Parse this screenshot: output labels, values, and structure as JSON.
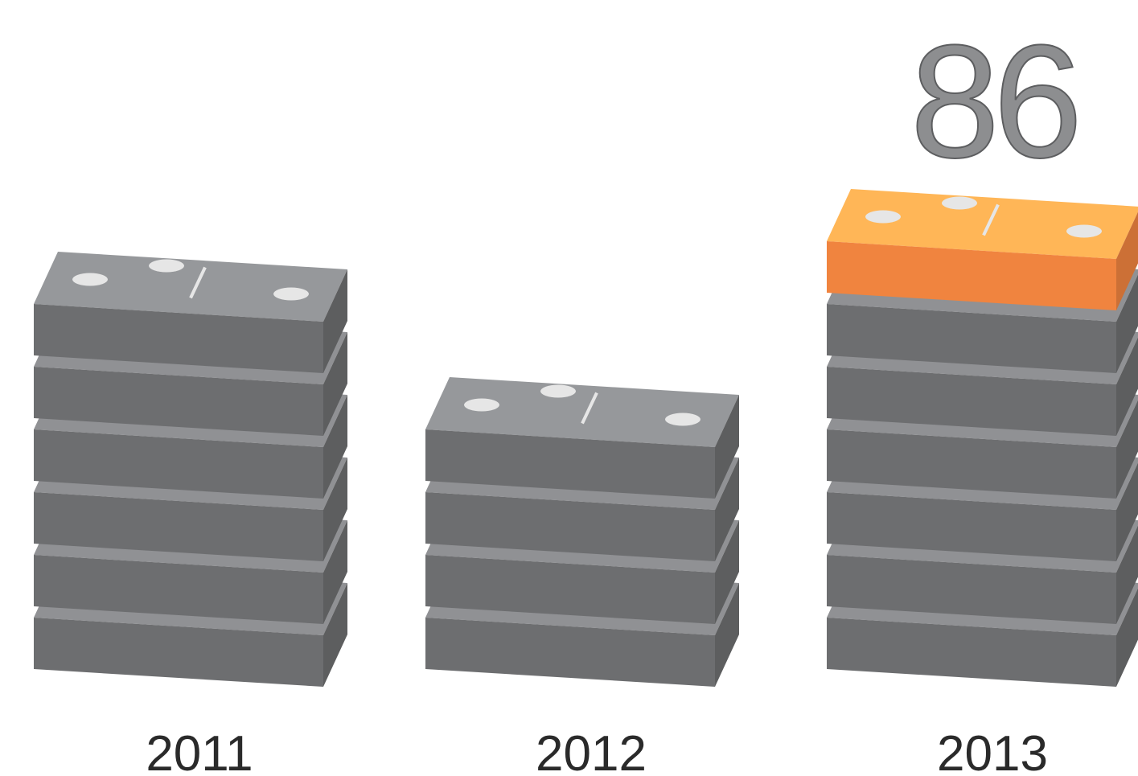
{
  "chart_data": {
    "type": "pictograph",
    "categories": [
      "2011",
      "2012",
      "2013"
    ],
    "values": [
      6,
      4,
      7
    ],
    "color": "#6d6e70",
    "highlight_color": "#f0843f",
    "highlight_index": 2,
    "annotation": "86"
  }
}
